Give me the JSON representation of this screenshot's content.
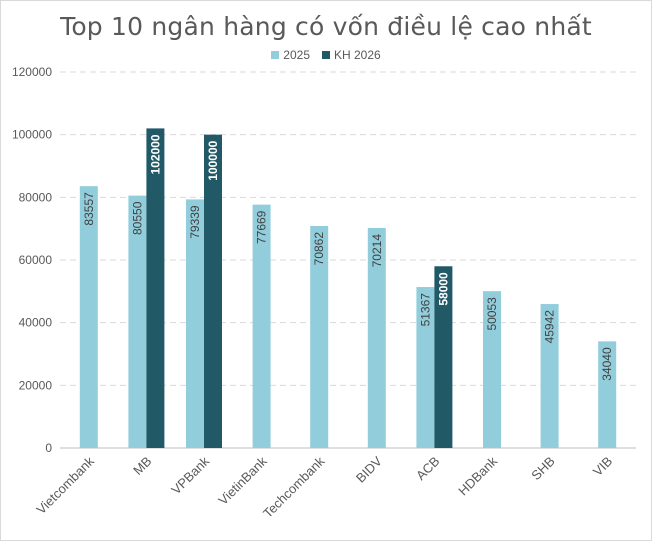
{
  "chart_data": {
    "type": "bar",
    "title": "Top 10 ngân hàng có vốn điều lệ cao nhất",
    "categories": [
      "Vietcombank",
      "MB",
      "VPBank",
      "VietinBank",
      "Techcombank",
      "BIDV",
      "ACB",
      "HDBank",
      "SHB",
      "VIB"
    ],
    "series": [
      {
        "name": "2025",
        "color": "#92cddc",
        "values": [
          83557,
          80550,
          79339,
          77669,
          70862,
          70214,
          51367,
          50053,
          45942,
          34040
        ]
      },
      {
        "name": "KH 2026",
        "color": "#215967",
        "values": [
          null,
          102000,
          100000,
          null,
          null,
          null,
          58000,
          null,
          null,
          null
        ]
      }
    ],
    "ylim": [
      0,
      120000
    ],
    "yticks": [
      0,
      20000,
      40000,
      60000,
      80000,
      100000,
      120000
    ],
    "grid": true,
    "legend": "top",
    "xlabel": "",
    "ylabel": ""
  }
}
